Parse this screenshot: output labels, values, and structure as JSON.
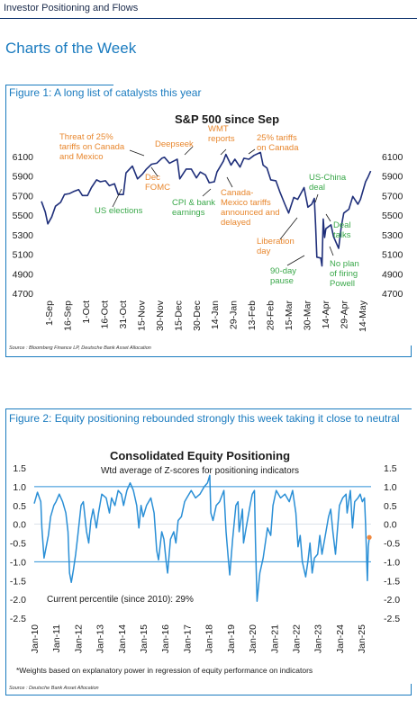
{
  "header": {
    "title": "Investor Positioning and Flows"
  },
  "section_title": "Charts of the Week",
  "figure1": {
    "title": "Figure 1: A long list of catalysts this year",
    "source": "Source : Bloomberg Finance LP, Deutsche Bank Asset Allocation"
  },
  "figure2": {
    "title": "Figure 2: Equity positioning rebounded strongly this week taking it close to neutral",
    "source": "Source : Deutsche Bank Asset Allocation",
    "footnote": "*Weights based on explanatory power in regression of equity performance on indicators"
  },
  "chart_data": [
    {
      "type": "line",
      "title": "S&P 500 since Sep",
      "ylim": [
        4700,
        6300
      ],
      "yticks": [
        6100,
        5900,
        5700,
        5500,
        5300,
        5100,
        4900,
        4700
      ],
      "ytick_labels": [
        "6100",
        "5900",
        "5700",
        "5500",
        "5300",
        "5100",
        "4900",
        "4700"
      ],
      "xtick_labels": [
        "1-Sep",
        "16-Sep",
        "1-Oct",
        "16-Oct",
        "31-Oct",
        "15-Nov",
        "30-Nov",
        "15-Dec",
        "30-Dec",
        "14-Jan",
        "29-Jan",
        "13-Feb",
        "28-Feb",
        "15-Mar",
        "30-Mar",
        "14-Apr",
        "29-Apr",
        "14-May"
      ],
      "x_range": [
        "2024-09-01",
        "2025-05-17"
      ],
      "series": [
        {
          "color": "#1f2f7a",
          "points": [
            [
              "2024-09-01",
              5640
            ],
            [
              "2024-09-04",
              5530
            ],
            [
              "2024-09-06",
              5410
            ],
            [
              "2024-09-09",
              5480
            ],
            [
              "2024-09-12",
              5590
            ],
            [
              "2024-09-16",
              5630
            ],
            [
              "2024-09-19",
              5710
            ],
            [
              "2024-09-23",
              5720
            ],
            [
              "2024-09-26",
              5740
            ],
            [
              "2024-09-30",
              5760
            ],
            [
              "2024-10-03",
              5700
            ],
            [
              "2024-10-07",
              5700
            ],
            [
              "2024-10-10",
              5780
            ],
            [
              "2024-10-14",
              5860
            ],
            [
              "2024-10-17",
              5840
            ],
            [
              "2024-10-21",
              5850
            ],
            [
              "2024-10-24",
              5800
            ],
            [
              "2024-10-28",
              5820
            ],
            [
              "2024-10-31",
              5710
            ],
            [
              "2024-11-04",
              5710
            ],
            [
              "2024-11-06",
              5930
            ],
            [
              "2024-11-11",
              6000
            ],
            [
              "2024-11-15",
              5870
            ],
            [
              "2024-11-19",
              5920
            ],
            [
              "2024-11-22",
              5970
            ],
            [
              "2024-11-26",
              6020
            ],
            [
              "2024-11-30",
              6030
            ],
            [
              "2024-12-04",
              6080
            ],
            [
              "2024-12-06",
              6090
            ],
            [
              "2024-12-10",
              6030
            ],
            [
              "2024-12-13",
              6050
            ],
            [
              "2024-12-16",
              6070
            ],
            [
              "2024-12-18",
              5870
            ],
            [
              "2024-12-23",
              5970
            ],
            [
              "2024-12-27",
              5970
            ],
            [
              "2024-12-31",
              5880
            ],
            [
              "2025-01-03",
              5940
            ],
            [
              "2025-01-07",
              5910
            ],
            [
              "2025-01-10",
              5830
            ],
            [
              "2025-01-14",
              5840
            ],
            [
              "2025-01-16",
              5940
            ],
            [
              "2025-01-21",
              6050
            ],
            [
              "2025-01-23",
              6120
            ],
            [
              "2025-01-27",
              6010
            ],
            [
              "2025-01-30",
              6070
            ],
            [
              "2025-02-03",
              5990
            ],
            [
              "2025-02-06",
              6080
            ],
            [
              "2025-02-10",
              6070
            ],
            [
              "2025-02-14",
              6110
            ],
            [
              "2025-02-19",
              6140
            ],
            [
              "2025-02-21",
              6010
            ],
            [
              "2025-02-24",
              5980
            ],
            [
              "2025-02-27",
              5860
            ],
            [
              "2025-03-03",
              5850
            ],
            [
              "2025-03-06",
              5740
            ],
            [
              "2025-03-10",
              5610
            ],
            [
              "2025-03-13",
              5520
            ],
            [
              "2025-03-17",
              5680
            ],
            [
              "2025-03-20",
              5660
            ],
            [
              "2025-03-25",
              5780
            ],
            [
              "2025-03-28",
              5580
            ],
            [
              "2025-03-31",
              5610
            ],
            [
              "2025-04-02",
              5670
            ],
            [
              "2025-04-03",
              5400
            ],
            [
              "2025-04-04",
              5070
            ],
            [
              "2025-04-07",
              5060
            ],
            [
              "2025-04-08",
              4980
            ],
            [
              "2025-04-09",
              5460
            ],
            [
              "2025-04-10",
              5270
            ],
            [
              "2025-04-11",
              5360
            ],
            [
              "2025-04-15",
              5400
            ],
            [
              "2025-04-17",
              5280
            ],
            [
              "2025-04-21",
              5160
            ],
            [
              "2025-04-23",
              5380
            ],
            [
              "2025-04-25",
              5520
            ],
            [
              "2025-04-29",
              5560
            ],
            [
              "2025-05-02",
              5690
            ],
            [
              "2025-05-06",
              5610
            ],
            [
              "2025-05-08",
              5660
            ],
            [
              "2025-05-12",
              5840
            ],
            [
              "2025-05-14",
              5890
            ],
            [
              "2025-05-16",
              5950
            ]
          ]
        }
      ],
      "annotations": [
        {
          "text": [
            "Threat of 25%",
            "tariffs on Canada",
            "and Mexico"
          ],
          "color": "#e8872e"
        },
        {
          "text": [
            "Deepseek"
          ],
          "color": "#e8872e"
        },
        {
          "text": [
            "WMT",
            "reports"
          ],
          "color": "#e8872e"
        },
        {
          "text": [
            "25% tariffs",
            "on Canada"
          ],
          "color": "#e8872e"
        },
        {
          "text": [
            "Dec",
            "FOMC"
          ],
          "color": "#e8872e"
        },
        {
          "text": [
            "US elections"
          ],
          "color": "#3aa84a"
        },
        {
          "text": [
            "CPI & bank",
            "earnings"
          ],
          "color": "#3aa84a"
        },
        {
          "text": [
            "Canada-",
            "Mexico tariffs",
            "announced and",
            "delayed"
          ],
          "color": "#e8872e"
        },
        {
          "text": [
            "US-China",
            "deal"
          ],
          "color": "#3aa84a"
        },
        {
          "text": [
            "Deal",
            "talks"
          ],
          "color": "#3aa84a"
        },
        {
          "text": [
            "Liberation",
            "day"
          ],
          "color": "#e8872e"
        },
        {
          "text": [
            "90-day",
            "pause"
          ],
          "color": "#3aa84a"
        },
        {
          "text": [
            "No plan",
            "of firing",
            "Powell"
          ],
          "color": "#3aa84a"
        }
      ]
    },
    {
      "type": "line",
      "title": "Consolidated Equity Positioning",
      "subtitle": "Wtd average of Z-scores for positioning indicators",
      "ylim": [
        -2.5,
        1.5
      ],
      "yticks": [
        1.5,
        1.0,
        0.5,
        0.0,
        -0.5,
        -1.0,
        -1.5,
        -2.0,
        -2.5
      ],
      "ytick_labels": [
        "1.5",
        "1.0",
        "0.5",
        "0.0",
        "-0.5",
        "-1.0",
        "-1.5",
        "-2.0",
        "-2.5"
      ],
      "hlines": [
        1.0,
        -1.0
      ],
      "xtick_labels": [
        "Jan-10",
        "Jan-11",
        "Jan-12",
        "Jan-13",
        "Jan-14",
        "Jan-15",
        "Jan-16",
        "Jan-17",
        "Jan-18",
        "Jan-19",
        "Jan-20",
        "Jan-21",
        "Jan-22",
        "Jan-23",
        "Jan-24",
        "Jan-25"
      ],
      "x_range": [
        2010.0,
        2025.45
      ],
      "series": [
        {
          "color": "#2a8fd6",
          "points": [
            [
              2010.0,
              0.55
            ],
            [
              2010.15,
              0.85
            ],
            [
              2010.3,
              0.6
            ],
            [
              2010.35,
              -0.1
            ],
            [
              2010.45,
              -0.9
            ],
            [
              2010.55,
              -0.6
            ],
            [
              2010.65,
              -0.3
            ],
            [
              2010.75,
              0.2
            ],
            [
              2010.9,
              0.5
            ],
            [
              2011.0,
              0.6
            ],
            [
              2011.15,
              0.8
            ],
            [
              2011.3,
              0.6
            ],
            [
              2011.45,
              0.3
            ],
            [
              2011.55,
              -0.2
            ],
            [
              2011.62,
              -1.3
            ],
            [
              2011.7,
              -1.55
            ],
            [
              2011.8,
              -1.2
            ],
            [
              2011.9,
              -0.8
            ],
            [
              2012.0,
              -0.3
            ],
            [
              2012.15,
              0.5
            ],
            [
              2012.25,
              0.6
            ],
            [
              2012.4,
              -0.2
            ],
            [
              2012.5,
              -0.5
            ],
            [
              2012.6,
              0.1
            ],
            [
              2012.7,
              0.4
            ],
            [
              2012.85,
              -0.1
            ],
            [
              2012.95,
              0.3
            ],
            [
              2013.1,
              0.8
            ],
            [
              2013.3,
              0.7
            ],
            [
              2013.45,
              0.3
            ],
            [
              2013.55,
              0.7
            ],
            [
              2013.7,
              0.5
            ],
            [
              2013.85,
              0.9
            ],
            [
              2014.0,
              0.8
            ],
            [
              2014.1,
              0.5
            ],
            [
              2014.25,
              0.9
            ],
            [
              2014.4,
              1.1
            ],
            [
              2014.55,
              0.9
            ],
            [
              2014.7,
              0.5
            ],
            [
              2014.8,
              -0.1
            ],
            [
              2014.9,
              0.5
            ],
            [
              2015.0,
              0.2
            ],
            [
              2015.15,
              0.5
            ],
            [
              2015.35,
              0.7
            ],
            [
              2015.5,
              0.3
            ],
            [
              2015.62,
              -0.7
            ],
            [
              2015.7,
              -0.95
            ],
            [
              2015.85,
              -0.2
            ],
            [
              2015.95,
              -0.4
            ],
            [
              2016.05,
              -1.0
            ],
            [
              2016.12,
              -1.3
            ],
            [
              2016.25,
              -0.4
            ],
            [
              2016.4,
              -0.2
            ],
            [
              2016.5,
              -0.5
            ],
            [
              2016.6,
              0.1
            ],
            [
              2016.75,
              0.2
            ],
            [
              2016.9,
              0.6
            ],
            [
              2017.0,
              0.7
            ],
            [
              2017.2,
              0.9
            ],
            [
              2017.4,
              0.7
            ],
            [
              2017.6,
              0.8
            ],
            [
              2017.8,
              1.0
            ],
            [
              2017.95,
              1.1
            ],
            [
              2018.05,
              1.3
            ],
            [
              2018.1,
              0.3
            ],
            [
              2018.2,
              0.1
            ],
            [
              2018.35,
              0.5
            ],
            [
              2018.5,
              0.6
            ],
            [
              2018.7,
              0.9
            ],
            [
              2018.8,
              -0.2
            ],
            [
              2018.9,
              -0.9
            ],
            [
              2018.97,
              -1.35
            ],
            [
              2019.1,
              -0.4
            ],
            [
              2019.25,
              0.5
            ],
            [
              2019.35,
              0.6
            ],
            [
              2019.4,
              -0.2
            ],
            [
              2019.55,
              0.4
            ],
            [
              2019.6,
              -0.5
            ],
            [
              2019.75,
              0.0
            ],
            [
              2019.9,
              0.5
            ],
            [
              2020.0,
              0.8
            ],
            [
              2020.1,
              0.9
            ],
            [
              2020.15,
              -0.5
            ],
            [
              2020.2,
              -1.6
            ],
            [
              2020.22,
              -2.05
            ],
            [
              2020.35,
              -1.3
            ],
            [
              2020.5,
              -0.9
            ],
            [
              2020.6,
              -0.5
            ],
            [
              2020.7,
              -0.1
            ],
            [
              2020.85,
              -0.3
            ],
            [
              2020.95,
              0.5
            ],
            [
              2021.1,
              0.9
            ],
            [
              2021.3,
              0.7
            ],
            [
              2021.5,
              0.8
            ],
            [
              2021.7,
              0.6
            ],
            [
              2021.85,
              0.9
            ],
            [
              2022.0,
              0.3
            ],
            [
              2022.1,
              -0.6
            ],
            [
              2022.2,
              -0.3
            ],
            [
              2022.3,
              -1.0
            ],
            [
              2022.45,
              -1.4
            ],
            [
              2022.55,
              -1.0
            ],
            [
              2022.65,
              -0.5
            ],
            [
              2022.75,
              -1.3
            ],
            [
              2022.85,
              -0.9
            ],
            [
              2023.0,
              -0.8
            ],
            [
              2023.1,
              -0.3
            ],
            [
              2023.2,
              -0.8
            ],
            [
              2023.35,
              -0.3
            ],
            [
              2023.5,
              0.2
            ],
            [
              2023.6,
              0.4
            ],
            [
              2023.7,
              -0.2
            ],
            [
              2023.82,
              -0.8
            ],
            [
              2023.9,
              -0.2
            ],
            [
              2024.0,
              0.5
            ],
            [
              2024.15,
              0.7
            ],
            [
              2024.3,
              0.8
            ],
            [
              2024.35,
              0.3
            ],
            [
              2024.5,
              0.9
            ],
            [
              2024.6,
              -0.1
            ],
            [
              2024.7,
              0.6
            ],
            [
              2024.85,
              0.7
            ],
            [
              2024.95,
              0.8
            ],
            [
              2025.05,
              0.6
            ],
            [
              2025.15,
              0.7
            ],
            [
              2025.2,
              0.0
            ],
            [
              2025.25,
              -1.0
            ],
            [
              2025.28,
              -1.5
            ],
            [
              2025.32,
              -0.6
            ],
            [
              2025.37,
              -0.35
            ]
          ]
        }
      ],
      "marker": {
        "x": 2025.37,
        "y": -0.35,
        "color": "#f0883e"
      },
      "annotation": "Current percentile (since 2010): 29%"
    }
  ]
}
